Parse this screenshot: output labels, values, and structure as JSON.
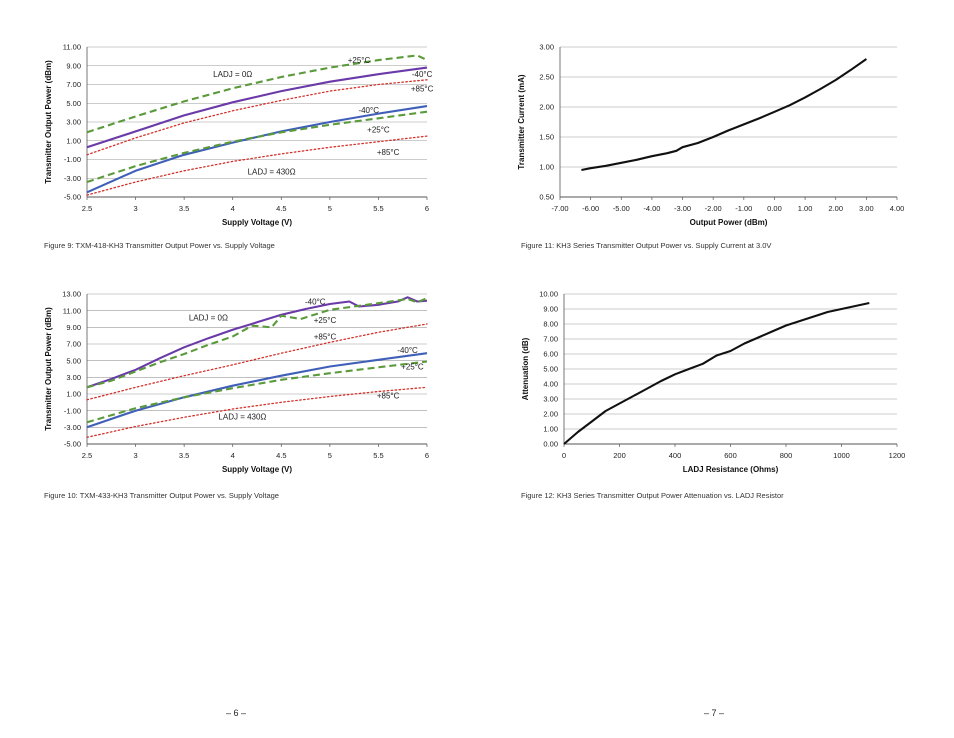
{
  "pages": [
    {
      "number": "– 6 –"
    },
    {
      "number": "– 7 –"
    }
  ],
  "colors": {
    "neg40": "#6a3aa8",
    "pos25": "#5a9a3a",
    "pos85": "#d4312a",
    "blue": "#3f5fb8",
    "black": "#111111"
  },
  "chart_data": [
    {
      "type": "line",
      "caption": "Figure 9: TXM-418-KH3 Transmitter Output Power vs. Supply Voltage",
      "xlabel": "Supply Voltage (V)",
      "ylabel": "Transmitter Output Power (dBm)",
      "xlim": [
        2.5,
        6
      ],
      "ylim": [
        -5,
        11
      ],
      "xticks": [
        "2.5",
        "3",
        "3.5",
        "4",
        "4.5",
        "5",
        "5.5",
        "6"
      ],
      "yticks": [
        "-5.00",
        "-3.00",
        "-1.00",
        "1.00",
        "3.00",
        "5.00",
        "7.00",
        "9.00",
        "11.00"
      ],
      "grid": "horizontal",
      "series": [
        {
          "name": "-40°C",
          "group": "LADJ = 0Ω",
          "color": "#6a3aa8",
          "style": "solid",
          "x": [
            2.5,
            3,
            3.5,
            4,
            4.5,
            5,
            5.5,
            6
          ],
          "y": [
            0.3,
            2.0,
            3.7,
            5.1,
            6.3,
            7.3,
            8.1,
            8.8
          ]
        },
        {
          "name": "+25°C",
          "group": "LADJ = 0Ω",
          "color": "#5a9a3a",
          "style": "dashed",
          "x": [
            2.5,
            3,
            3.5,
            4,
            4.5,
            5,
            5.5,
            5.9,
            6
          ],
          "y": [
            1.9,
            3.6,
            5.2,
            6.6,
            7.8,
            8.8,
            9.6,
            10.1,
            9.6
          ]
        },
        {
          "name": "+85°C",
          "group": "LADJ = 0Ω",
          "color": "#d4312a",
          "style": "dotted",
          "x": [
            2.5,
            3,
            3.5,
            4,
            4.5,
            5,
            5.5,
            6
          ],
          "y": [
            -0.5,
            1.3,
            2.9,
            4.2,
            5.3,
            6.3,
            7.0,
            7.5
          ]
        },
        {
          "name": "-40°C",
          "group": "LADJ = 430Ω",
          "color": "#3f5fb8",
          "style": "solid",
          "x": [
            2.5,
            3,
            3.5,
            4,
            4.5,
            5,
            5.5,
            6
          ],
          "y": [
            -4.5,
            -2.2,
            -0.5,
            0.8,
            2.0,
            3.0,
            3.9,
            4.7
          ]
        },
        {
          "name": "+25°C",
          "group": "LADJ = 430Ω",
          "color": "#5a9a3a",
          "style": "dashed",
          "x": [
            2.5,
            3,
            3.5,
            4,
            4.5,
            5,
            5.5,
            6
          ],
          "y": [
            -3.4,
            -1.7,
            -0.3,
            0.9,
            1.9,
            2.7,
            3.4,
            4.1
          ]
        },
        {
          "name": "+85°C",
          "group": "LADJ = 430Ω",
          "color": "#d4312a",
          "style": "dotted",
          "x": [
            2.5,
            3,
            3.5,
            4,
            4.5,
            5,
            5.5,
            6
          ],
          "y": [
            -4.8,
            -3.4,
            -2.2,
            -1.2,
            -0.4,
            0.3,
            0.9,
            1.5
          ]
        }
      ],
      "annotations": [
        {
          "text": "+25°C",
          "x": 5.3,
          "y": 9.6
        },
        {
          "text": "LADJ = 0Ω",
          "x": 4.0,
          "y": 8.1
        },
        {
          "text": "-40°C",
          "x": 5.95,
          "y": 8.1
        },
        {
          "text": "+85°C",
          "x": 5.95,
          "y": 6.6
        },
        {
          "text": "-40°C",
          "x": 5.4,
          "y": 4.3
        },
        {
          "text": "+25°C",
          "x": 5.5,
          "y": 2.2
        },
        {
          "text": "+85°C",
          "x": 5.6,
          "y": -0.2
        },
        {
          "text": "LADJ = 430Ω",
          "x": 4.4,
          "y": -2.3
        }
      ]
    },
    {
      "type": "line",
      "caption": "Figure 10: TXM-433-KH3 Transmitter Output Power vs. Supply Voltage",
      "xlabel": "Supply Voltage (V)",
      "ylabel": "Transmitter Output Power (dBm)",
      "xlim": [
        2.5,
        6
      ],
      "ylim": [
        -5,
        13
      ],
      "xticks": [
        "2.5",
        "3",
        "3.5",
        "4",
        "4.5",
        "5",
        "5.5",
        "6"
      ],
      "yticks": [
        "-5.00",
        "-3.00",
        "-1.00",
        "1.00",
        "3.00",
        "5.00",
        "7.00",
        "9.00",
        "11.00",
        "13.00"
      ],
      "grid": "horizontal",
      "series": [
        {
          "name": "-40°C",
          "group": "LADJ = 0Ω",
          "color": "#6a3aa8",
          "style": "solid",
          "x": [
            2.5,
            2.75,
            3,
            3.25,
            3.5,
            3.75,
            4,
            4.25,
            4.5,
            4.75,
            5,
            5.2,
            5.3,
            5.5,
            5.7,
            5.8,
            5.9,
            6
          ],
          "y": [
            1.8,
            2.8,
            3.9,
            5.3,
            6.6,
            7.7,
            8.7,
            9.6,
            10.5,
            11.2,
            11.8,
            12.1,
            11.5,
            11.7,
            12.1,
            12.6,
            12.1,
            12.2
          ]
        },
        {
          "name": "+25°C",
          "group": "LADJ = 0Ω",
          "color": "#5a9a3a",
          "style": "dashed",
          "x": [
            2.5,
            2.75,
            3,
            3.25,
            3.5,
            3.75,
            4,
            4.2,
            4.4,
            4.5,
            4.7,
            5,
            5.5,
            5.8,
            5.9,
            6
          ],
          "y": [
            1.8,
            2.6,
            3.7,
            4.8,
            5.8,
            6.9,
            7.9,
            9.2,
            9.0,
            10.4,
            10.0,
            11.1,
            11.9,
            12.4,
            12.0,
            12.5
          ]
        },
        {
          "name": "+85°C",
          "group": "LADJ = 0Ω",
          "color": "#d4312a",
          "style": "dotted",
          "x": [
            2.5,
            3,
            3.5,
            4,
            4.5,
            5,
            5.5,
            6
          ],
          "y": [
            0.3,
            1.8,
            3.2,
            4.5,
            5.9,
            7.2,
            8.4,
            9.4
          ]
        },
        {
          "name": "-40°C",
          "group": "LADJ = 430Ω",
          "color": "#3f5fb8",
          "style": "solid",
          "x": [
            2.5,
            3,
            3.5,
            4,
            4.5,
            5,
            5.5,
            6
          ],
          "y": [
            -3.0,
            -1.0,
            0.6,
            2.0,
            3.2,
            4.3,
            5.1,
            5.9
          ]
        },
        {
          "name": "+25°C",
          "group": "LADJ = 430Ω",
          "color": "#5a9a3a",
          "style": "dashed",
          "x": [
            2.5,
            3,
            3.5,
            4,
            4.5,
            5,
            5.5,
            6
          ],
          "y": [
            -2.4,
            -0.7,
            0.6,
            1.7,
            2.7,
            3.5,
            4.2,
            4.9
          ]
        },
        {
          "name": "+85°C",
          "group": "LADJ = 430Ω",
          "color": "#d4312a",
          "style": "dotted",
          "x": [
            2.5,
            3,
            3.5,
            4,
            4.5,
            5,
            5.5,
            6
          ],
          "y": [
            -4.2,
            -2.9,
            -1.8,
            -0.8,
            0.0,
            0.7,
            1.3,
            1.8
          ]
        }
      ],
      "annotations": [
        {
          "text": "-40°C",
          "x": 4.85,
          "y": 12.1
        },
        {
          "text": "LADJ = 0Ω",
          "x": 3.75,
          "y": 10.2
        },
        {
          "text": "+25°C",
          "x": 4.95,
          "y": 9.9
        },
        {
          "text": "+85°C",
          "x": 4.95,
          "y": 7.9
        },
        {
          "text": "-40°C",
          "x": 5.8,
          "y": 6.3
        },
        {
          "text": "+25°C",
          "x": 5.85,
          "y": 4.3
        },
        {
          "text": "+85°C",
          "x": 5.6,
          "y": 0.8
        },
        {
          "text": "LADJ = 430Ω",
          "x": 4.1,
          "y": -1.7
        }
      ]
    },
    {
      "type": "line",
      "caption": "Figure 11: KH3 Series Transmitter Output Power vs. Supply Current at 3.0V",
      "xlabel": "Output Power (dBm)",
      "ylabel": "Transmitter Current (mA)",
      "xlim": [
        -7,
        4
      ],
      "ylim": [
        0.5,
        3
      ],
      "xticks": [
        "-7.00",
        "-6.00",
        "-5.00",
        "-4.00",
        "-3.00",
        "-2.00",
        "-1.00",
        "0.00",
        "1.00",
        "2.00",
        "3.00",
        "4.00"
      ],
      "yticks": [
        "0.50",
        "1.00",
        "1.50",
        "2.00",
        "2.50",
        "3.00"
      ],
      "grid": "horizontal",
      "series": [
        {
          "color": "#111111",
          "style": "solid",
          "x": [
            -6.3,
            -6.0,
            -5.5,
            -5.0,
            -4.5,
            -4.0,
            -3.5,
            -3.2,
            -3.0,
            -2.5,
            -2.0,
            -1.5,
            -1.0,
            -0.5,
            0.0,
            0.5,
            1.0,
            1.5,
            2.0,
            2.5,
            3.0
          ],
          "y": [
            0.95,
            0.98,
            1.02,
            1.07,
            1.12,
            1.18,
            1.23,
            1.27,
            1.33,
            1.4,
            1.5,
            1.61,
            1.71,
            1.81,
            1.92,
            2.03,
            2.16,
            2.3,
            2.45,
            2.62,
            2.8
          ]
        }
      ]
    },
    {
      "type": "line",
      "caption": "Figure 12: KH3 Series Transmitter Output Power Attenuation vs. LADJ Resistor",
      "xlabel": "LADJ Resistance (Ohms)",
      "ylabel": "Attenuation (dB)",
      "xlim": [
        0,
        1200
      ],
      "ylim": [
        0,
        10
      ],
      "xticks": [
        "0",
        "200",
        "400",
        "600",
        "800",
        "1000",
        "1200"
      ],
      "yticks": [
        "0.00",
        "1.00",
        "2.00",
        "3.00",
        "4.00",
        "5.00",
        "6.00",
        "7.00",
        "8.00",
        "9.00",
        "10.00"
      ],
      "grid": "horizontal",
      "series": [
        {
          "color": "#111111",
          "style": "solid",
          "x": [
            0,
            50,
            100,
            150,
            200,
            250,
            300,
            350,
            400,
            450,
            500,
            550,
            600,
            650,
            700,
            750,
            800,
            850,
            900,
            950,
            1000,
            1050,
            1100
          ],
          "y": [
            0.0,
            0.8,
            1.5,
            2.2,
            2.7,
            3.2,
            3.7,
            4.2,
            4.65,
            5.0,
            5.35,
            5.9,
            6.2,
            6.7,
            7.1,
            7.5,
            7.9,
            8.2,
            8.5,
            8.8,
            9.0,
            9.2,
            9.4
          ]
        }
      ]
    }
  ]
}
